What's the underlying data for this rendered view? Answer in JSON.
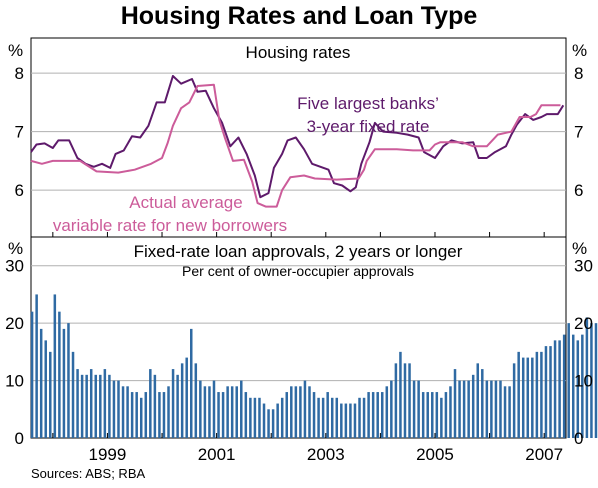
{
  "title": "Housing Rates and Loan Type",
  "sources": "Sources: ABS; RBA",
  "colors": {
    "fixed_line": "#5e1a6b",
    "variable_line": "#cc5c9a",
    "bars": "#2f6aa3",
    "frame": "#000000",
    "grid": "#b0b0b0"
  },
  "chart_data": [
    {
      "type": "line",
      "title": "Housing rates",
      "ylabel_left": "%",
      "ylabel_right": "%",
      "ylim": [
        5.2,
        8.6
      ],
      "yticks": [
        "8",
        "7",
        "6"
      ],
      "xlim": [
        1997.6,
        2007.4
      ],
      "grid": true,
      "series": [
        {
          "name": "Five largest banks’ 3-year fixed rate",
          "label_lines": [
            "Five largest banks’",
            "3-year fixed rate"
          ],
          "points": [
            [
              1997.6,
              6.65
            ],
            [
              1997.7,
              6.78
            ],
            [
              1997.85,
              6.8
            ],
            [
              1998.0,
              6.72
            ],
            [
              1998.1,
              6.85
            ],
            [
              1998.3,
              6.85
            ],
            [
              1998.45,
              6.55
            ],
            [
              1998.6,
              6.45
            ],
            [
              1998.75,
              6.4
            ],
            [
              1998.9,
              6.45
            ],
            [
              1999.05,
              6.38
            ],
            [
              1999.15,
              6.62
            ],
            [
              1999.3,
              6.68
            ],
            [
              1999.45,
              6.92
            ],
            [
              1999.6,
              6.9
            ],
            [
              1999.75,
              7.1
            ],
            [
              1999.9,
              7.5
            ],
            [
              2000.05,
              7.5
            ],
            [
              2000.2,
              7.95
            ],
            [
              2000.35,
              7.82
            ],
            [
              2000.55,
              7.9
            ],
            [
              2000.65,
              7.68
            ],
            [
              2000.8,
              7.7
            ],
            [
              2000.95,
              7.4
            ],
            [
              2001.1,
              7.15
            ],
            [
              2001.25,
              6.75
            ],
            [
              2001.4,
              6.9
            ],
            [
              2001.55,
              6.62
            ],
            [
              2001.7,
              6.25
            ],
            [
              2001.8,
              5.88
            ],
            [
              2001.95,
              5.95
            ],
            [
              2002.05,
              6.38
            ],
            [
              2002.2,
              6.62
            ],
            [
              2002.3,
              6.85
            ],
            [
              2002.45,
              6.9
            ],
            [
              2002.6,
              6.7
            ],
            [
              2002.75,
              6.45
            ],
            [
              2003.05,
              6.35
            ],
            [
              2003.15,
              6.12
            ],
            [
              2003.3,
              6.08
            ],
            [
              2003.45,
              5.98
            ],
            [
              2003.55,
              6.05
            ],
            [
              2003.65,
              6.45
            ],
            [
              2003.8,
              6.82
            ],
            [
              2003.9,
              7.15
            ],
            [
              2004.05,
              7.0
            ],
            [
              2004.3,
              6.98
            ],
            [
              2004.5,
              6.95
            ],
            [
              2004.7,
              6.9
            ],
            [
              2004.8,
              6.65
            ],
            [
              2005.0,
              6.55
            ],
            [
              2005.15,
              6.75
            ],
            [
              2005.3,
              6.85
            ],
            [
              2005.5,
              6.8
            ],
            [
              2005.7,
              6.82
            ],
            [
              2005.8,
              6.55
            ],
            [
              2005.95,
              6.55
            ],
            [
              2006.1,
              6.65
            ],
            [
              2006.3,
              6.75
            ],
            [
              2006.4,
              6.95
            ],
            [
              2006.5,
              7.12
            ],
            [
              2006.65,
              7.3
            ],
            [
              2006.8,
              7.2
            ],
            [
              2006.95,
              7.25
            ],
            [
              2007.05,
              7.3
            ],
            [
              2007.25,
              7.3
            ],
            [
              2007.35,
              7.45
            ]
          ]
        },
        {
          "name": "Actual average variable rate for new borrowers",
          "label_lines": [
            "Actual average",
            "variable rate for new borrowers"
          ],
          "points": [
            [
              1997.6,
              6.5
            ],
            [
              1997.8,
              6.45
            ],
            [
              1998.0,
              6.5
            ],
            [
              1998.5,
              6.5
            ],
            [
              1998.8,
              6.32
            ],
            [
              1999.2,
              6.3
            ],
            [
              1999.5,
              6.35
            ],
            [
              1999.8,
              6.45
            ],
            [
              2000.0,
              6.55
            ],
            [
              2000.1,
              6.8
            ],
            [
              2000.2,
              7.1
            ],
            [
              2000.35,
              7.4
            ],
            [
              2000.5,
              7.5
            ],
            [
              2000.65,
              7.78
            ],
            [
              2000.95,
              7.8
            ],
            [
              2001.05,
              7.2
            ],
            [
              2001.15,
              6.9
            ],
            [
              2001.3,
              6.5
            ],
            [
              2001.5,
              6.52
            ],
            [
              2001.65,
              6.15
            ],
            [
              2001.75,
              5.78
            ],
            [
              2001.9,
              5.72
            ],
            [
              2002.1,
              5.72
            ],
            [
              2002.2,
              6.0
            ],
            [
              2002.35,
              6.22
            ],
            [
              2002.6,
              6.25
            ],
            [
              2002.8,
              6.2
            ],
            [
              2003.2,
              6.18
            ],
            [
              2003.6,
              6.2
            ],
            [
              2003.7,
              6.35
            ],
            [
              2003.75,
              6.5
            ],
            [
              2003.9,
              6.7
            ],
            [
              2004.3,
              6.7
            ],
            [
              2004.6,
              6.68
            ],
            [
              2004.9,
              6.68
            ],
            [
              2005.0,
              6.78
            ],
            [
              2005.1,
              6.82
            ],
            [
              2005.5,
              6.82
            ],
            [
              2005.7,
              6.75
            ],
            [
              2005.95,
              6.75
            ],
            [
              2006.15,
              6.95
            ],
            [
              2006.4,
              7.0
            ],
            [
              2006.55,
              7.25
            ],
            [
              2006.75,
              7.25
            ],
            [
              2006.85,
              7.3
            ],
            [
              2006.95,
              7.45
            ],
            [
              2007.3,
              7.45
            ]
          ]
        }
      ]
    },
    {
      "type": "bar",
      "title": "Fixed-rate loan approvals, 2 years or longer",
      "subtitle": "Per cent of owner-occupier approvals",
      "ylabel_left": "%",
      "ylim": [
        0,
        35
      ],
      "yticks": [
        "0",
        "10",
        "20",
        "30"
      ],
      "xlim": [
        1997.6,
        2007.4
      ],
      "x_start": 1997.62,
      "x_step": 0.0833,
      "xtick_labels": [
        "1999",
        "2001",
        "2003",
        "2005",
        "2007"
      ],
      "xtick_values": [
        1999,
        2001,
        2003,
        2005,
        2007
      ],
      "grid": true,
      "values": [
        22,
        25,
        19,
        17,
        15,
        25,
        22,
        19,
        20,
        15,
        12,
        11,
        11,
        12,
        11,
        11,
        12,
        11,
        10,
        10,
        9,
        9,
        8,
        8,
        7,
        8,
        12,
        11,
        8,
        8,
        9,
        12,
        11,
        13,
        14,
        19,
        13,
        10,
        9,
        9,
        10,
        8,
        8,
        9,
        9,
        9,
        10,
        8,
        7,
        7,
        7,
        6,
        5,
        5,
        6,
        7,
        8,
        9,
        9,
        9,
        10,
        9,
        8,
        7,
        7,
        8,
        7,
        7,
        6,
        6,
        6,
        6,
        7,
        7,
        8,
        8,
        8,
        8,
        9,
        10,
        13,
        15,
        13,
        13,
        10,
        10,
        8,
        8,
        8,
        8,
        7,
        8,
        9,
        12,
        10,
        10,
        10,
        11,
        13,
        12,
        10,
        10,
        10,
        10,
        9,
        9,
        13,
        15,
        14,
        14,
        14,
        15,
        15,
        16,
        16,
        17,
        17,
        18,
        20,
        18,
        17,
        18,
        21,
        20,
        20,
        20
      ]
    }
  ]
}
